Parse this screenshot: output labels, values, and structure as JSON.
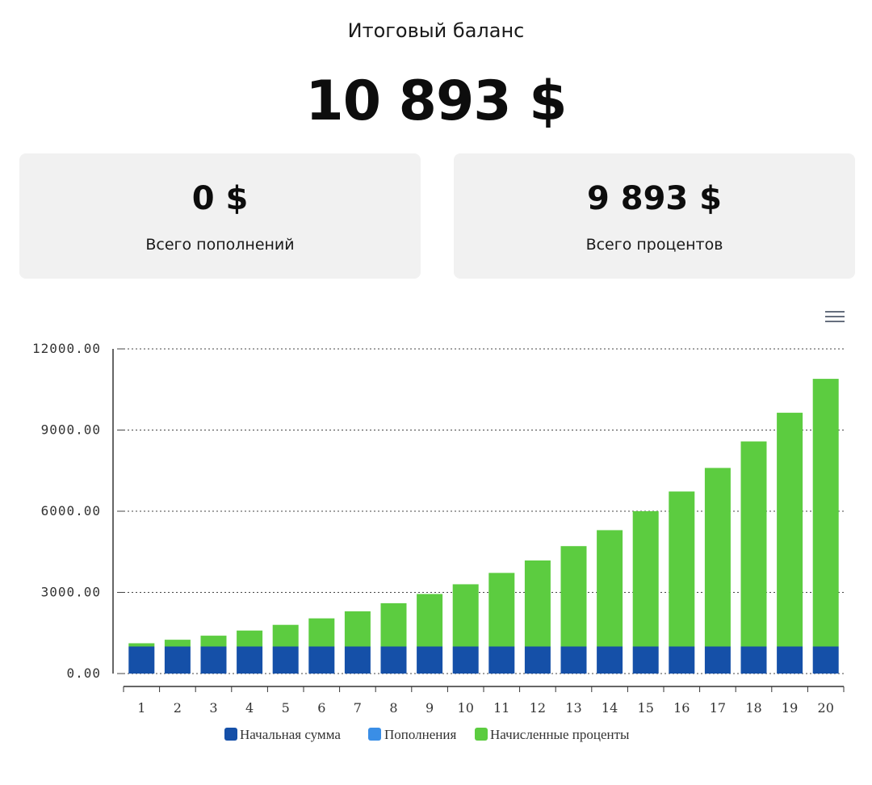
{
  "header": {
    "title": "Итоговый баланс",
    "total": "10 893 $"
  },
  "cards": {
    "deposits": {
      "amount": "0 $",
      "label": "Всего пополнений"
    },
    "interest": {
      "amount": "9 893 $",
      "label": "Всего процентов"
    }
  },
  "colors": {
    "initial": "#1550a8",
    "deposits": "#3a8ee6",
    "interest": "#5ccc40"
  },
  "chart_data": {
    "type": "bar",
    "stacked": true,
    "categories": [
      "1",
      "2",
      "3",
      "4",
      "5",
      "6",
      "7",
      "8",
      "9",
      "10",
      "11",
      "12",
      "13",
      "14",
      "15",
      "16",
      "17",
      "18",
      "19",
      "20"
    ],
    "series": [
      {
        "name": "Начальная сумма",
        "color": "#1550a8",
        "values": [
          1000,
          1000,
          1000,
          1000,
          1000,
          1000,
          1000,
          1000,
          1000,
          1000,
          1000,
          1000,
          1000,
          1000,
          1000,
          1000,
          1000,
          1000,
          1000,
          1000
        ]
      },
      {
        "name": "Пополнения",
        "color": "#3a8ee6",
        "values": [
          0,
          0,
          0,
          0,
          0,
          0,
          0,
          0,
          0,
          0,
          0,
          0,
          0,
          0,
          0,
          0,
          0,
          0,
          0,
          0
        ]
      },
      {
        "name": "Начисленные проценты",
        "color": "#5ccc40",
        "values": [
          120,
          250,
          400,
          590,
          800,
          1040,
          1300,
          1600,
          1940,
          2300,
          2720,
          3180,
          3710,
          4300,
          5000,
          5730,
          6600,
          7580,
          8640,
          9893
        ]
      }
    ],
    "y_ticks": [
      "0.00",
      "3000.00",
      "6000.00",
      "9000.00",
      "12000.00"
    ],
    "ylim": [
      0,
      12000
    ],
    "grid": true,
    "legend_position": "bottom"
  }
}
